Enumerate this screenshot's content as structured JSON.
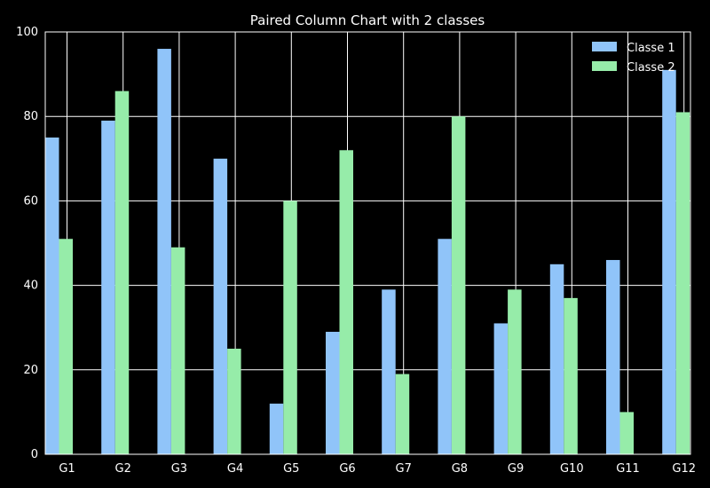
{
  "chart_data": {
    "type": "bar",
    "title": "Paired Column Chart with 2 classes",
    "xlabel": "",
    "ylabel": "",
    "categories": [
      "G1",
      "G2",
      "G3",
      "G4",
      "G5",
      "G6",
      "G7",
      "G8",
      "G9",
      "G10",
      "G11",
      "G12"
    ],
    "series": [
      {
        "name": "Classe 1",
        "color": "#90c4f9",
        "values": [
          75,
          79,
          96,
          70,
          12,
          29,
          39,
          51,
          31,
          45,
          46,
          91
        ]
      },
      {
        "name": "Classe 2",
        "color": "#96eca9",
        "values": [
          51,
          86,
          49,
          25,
          60,
          72,
          19,
          80,
          39,
          37,
          10,
          81
        ]
      }
    ],
    "ylim": [
      0,
      100
    ],
    "yticks": [
      0,
      20,
      40,
      60,
      80,
      100
    ],
    "grid": true,
    "legend_position": "top-right",
    "background": "#000000",
    "foreground": "#ffffff"
  }
}
